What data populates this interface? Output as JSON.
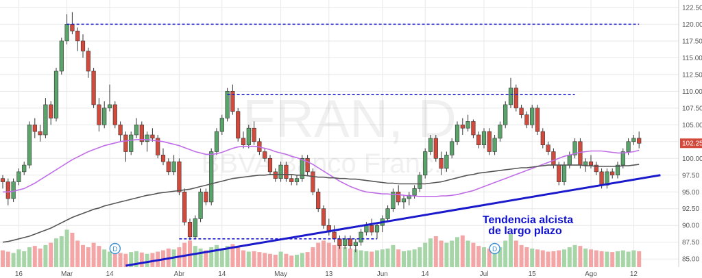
{
  "chart_data": {
    "type": "candlestick",
    "watermark": {
      "symbol": "FRAN, D",
      "name": "BBVA Banco Franc..."
    },
    "ylim": [
      84,
      123
    ],
    "y_ticks": [
      85.0,
      87.5,
      90.0,
      92.5,
      95.0,
      97.5,
      100.0,
      102.5,
      105.0,
      107.5,
      110.0,
      112.5,
      115.0,
      117.5,
      120.0,
      122.5
    ],
    "y_tick_labels": [
      "85.00",
      "87.50",
      "90.00",
      "92.50",
      "95.00",
      "97.50",
      "100.00",
      "102.50",
      "105.00",
      "107.50",
      "110.00",
      "112.50",
      "115.00",
      "117.50",
      "120.00",
      "122.50"
    ],
    "x_ticks": [
      {
        "label": "16",
        "index": 3
      },
      {
        "label": "Mar",
        "index": 12
      },
      {
        "label": "14",
        "index": 20
      },
      {
        "label": "Abr",
        "index": 33
      },
      {
        "label": "14",
        "index": 41
      },
      {
        "label": "May",
        "index": 52
      },
      {
        "label": "13",
        "index": 61
      },
      {
        "label": "Jun",
        "index": 71
      },
      {
        "label": "14",
        "index": 79
      },
      {
        "label": "Jul",
        "index": 90
      },
      {
        "label": "15",
        "index": 99
      },
      {
        "label": "Ago",
        "index": 110
      },
      {
        "label": "12",
        "index": 118
      }
    ],
    "last_price": {
      "value": 102.25,
      "label": "102.25"
    },
    "ohlc": [
      [
        97.0,
        97.5,
        95.5,
        96.5
      ],
      [
        96.5,
        97.0,
        93.0,
        94.0
      ],
      [
        94.0,
        97.0,
        93.5,
        96.5
      ],
      [
        96.5,
        98.5,
        96.0,
        98.0
      ],
      [
        98.0,
        99.5,
        97.5,
        99.0
      ],
      [
        99.0,
        105.5,
        98.5,
        105.0
      ],
      [
        105.0,
        106.0,
        103.0,
        104.0
      ],
      [
        104.0,
        105.0,
        102.5,
        103.5
      ],
      [
        103.5,
        109.0,
        103.0,
        108.0
      ],
      [
        108.0,
        108.5,
        105.0,
        106.0
      ],
      [
        106.0,
        113.5,
        105.5,
        113.0
      ],
      [
        113.0,
        118.0,
        112.5,
        117.5
      ],
      [
        117.5,
        121.5,
        117.0,
        120.0
      ],
      [
        120.0,
        121.8,
        118.5,
        119.0
      ],
      [
        119.0,
        119.5,
        116.0,
        117.5
      ],
      [
        117.5,
        118.5,
        115.0,
        116.0
      ],
      [
        116.0,
        116.5,
        112.0,
        113.0
      ],
      [
        113.0,
        113.5,
        107.5,
        108.0
      ],
      [
        108.0,
        109.0,
        104.0,
        105.0
      ],
      [
        105.0,
        108.5,
        104.5,
        107.5
      ],
      [
        107.5,
        111.0,
        107.0,
        108.0
      ],
      [
        108.0,
        108.5,
        104.5,
        105.0
      ],
      [
        105.0,
        105.5,
        102.5,
        103.5
      ],
      [
        103.5,
        104.0,
        99.5,
        101.0
      ],
      [
        101.0,
        104.0,
        100.5,
        103.5
      ],
      [
        103.5,
        106.0,
        103.0,
        105.0
      ],
      [
        105.0,
        105.5,
        102.0,
        102.5
      ],
      [
        102.5,
        104.0,
        101.0,
        103.5
      ],
      [
        103.5,
        104.5,
        102.5,
        103.0
      ],
      [
        103.0,
        103.5,
        100.0,
        100.5
      ],
      [
        100.5,
        101.5,
        99.0,
        99.5
      ],
      [
        99.5,
        100.0,
        97.5,
        98.0
      ],
      [
        98.0,
        100.5,
        97.5,
        99.5
      ],
      [
        99.5,
        100.0,
        94.5,
        95.0
      ],
      [
        95.0,
        95.5,
        90.0,
        90.5
      ],
      [
        90.5,
        91.0,
        87.8,
        88.3
      ],
      [
        88.3,
        91.5,
        88.0,
        91.0
      ],
      [
        91.0,
        95.5,
        90.5,
        95.0
      ],
      [
        95.0,
        95.5,
        93.0,
        93.5
      ],
      [
        93.5,
        101.5,
        93.0,
        101.0
      ],
      [
        101.0,
        104.5,
        100.5,
        104.0
      ],
      [
        104.0,
        106.5,
        103.5,
        106.0
      ],
      [
        106.0,
        110.5,
        105.5,
        110.0
      ],
      [
        110.0,
        111.0,
        106.5,
        107.0
      ],
      [
        107.0,
        107.5,
        102.5,
        103.0
      ],
      [
        103.0,
        104.0,
        101.5,
        102.0
      ],
      [
        102.0,
        105.0,
        101.5,
        104.5
      ],
      [
        104.5,
        105.5,
        102.0,
        102.5
      ],
      [
        102.5,
        103.0,
        100.5,
        101.0
      ],
      [
        101.0,
        101.5,
        99.5,
        100.0
      ],
      [
        100.0,
        100.5,
        97.5,
        98.0
      ],
      [
        98.0,
        98.5,
        96.5,
        97.0
      ],
      [
        97.0,
        99.5,
        96.5,
        99.0
      ],
      [
        99.0,
        99.5,
        96.5,
        97.0
      ],
      [
        97.0,
        97.5,
        96.0,
        96.5
      ],
      [
        96.5,
        97.5,
        96.0,
        97.0
      ],
      [
        97.0,
        100.5,
        96.5,
        100.0
      ],
      [
        100.0,
        100.5,
        97.5,
        98.0
      ],
      [
        98.0,
        98.5,
        94.5,
        95.0
      ],
      [
        95.0,
        95.5,
        92.0,
        92.5
      ],
      [
        92.5,
        93.0,
        89.5,
        90.0
      ],
      [
        90.0,
        91.0,
        88.5,
        89.0
      ],
      [
        89.0,
        90.0,
        87.5,
        88.0
      ],
      [
        88.0,
        88.5,
        86.5,
        87.0
      ],
      [
        87.0,
        88.5,
        86.5,
        88.0
      ],
      [
        88.0,
        88.5,
        86.5,
        87.0
      ],
      [
        87.0,
        88.0,
        86.0,
        87.5
      ],
      [
        87.5,
        89.5,
        87.0,
        89.0
      ],
      [
        89.0,
        90.5,
        88.5,
        90.0
      ],
      [
        90.0,
        91.0,
        88.5,
        89.0
      ],
      [
        89.0,
        90.5,
        88.0,
        90.0
      ],
      [
        90.0,
        91.5,
        89.0,
        91.0
      ],
      [
        91.0,
        93.0,
        90.5,
        92.5
      ],
      [
        92.5,
        95.5,
        92.0,
        95.0
      ],
      [
        95.0,
        96.0,
        93.0,
        93.5
      ],
      [
        93.5,
        94.5,
        92.5,
        94.0
      ],
      [
        94.0,
        95.0,
        93.0,
        94.5
      ],
      [
        94.5,
        96.0,
        94.0,
        95.5
      ],
      [
        95.5,
        98.0,
        95.0,
        97.5
      ],
      [
        97.5,
        101.5,
        97.0,
        101.0
      ],
      [
        101.0,
        103.5,
        100.5,
        103.0
      ],
      [
        103.0,
        103.5,
        99.5,
        100.0
      ],
      [
        100.0,
        101.0,
        97.5,
        98.5
      ],
      [
        98.5,
        101.0,
        98.0,
        100.5
      ],
      [
        100.5,
        103.0,
        100.0,
        102.5
      ],
      [
        102.5,
        105.5,
        102.0,
        105.0
      ],
      [
        105.0,
        106.0,
        103.5,
        104.5
      ],
      [
        104.5,
        106.5,
        104.0,
        105.5
      ],
      [
        105.5,
        105.8,
        103.0,
        103.5
      ],
      [
        103.5,
        104.0,
        101.5,
        102.0
      ],
      [
        102.0,
        104.5,
        101.5,
        104.0
      ],
      [
        104.0,
        104.5,
        100.5,
        101.0
      ],
      [
        101.0,
        103.5,
        100.5,
        103.0
      ],
      [
        103.0,
        105.5,
        102.5,
        105.0
      ],
      [
        105.0,
        108.5,
        104.5,
        108.0
      ],
      [
        108.0,
        112.0,
        107.5,
        110.5
      ],
      [
        110.5,
        111.0,
        107.0,
        107.5
      ],
      [
        107.5,
        108.0,
        106.0,
        106.5
      ],
      [
        106.5,
        107.0,
        104.5,
        105.0
      ],
      [
        105.0,
        108.0,
        104.5,
        107.5
      ],
      [
        107.5,
        108.0,
        103.5,
        104.0
      ],
      [
        104.0,
        104.5,
        101.5,
        102.0
      ],
      [
        102.0,
        102.5,
        100.5,
        101.0
      ],
      [
        101.0,
        101.5,
        98.5,
        99.0
      ],
      [
        99.0,
        99.5,
        96.0,
        96.5
      ],
      [
        96.5,
        99.5,
        96.0,
        99.0
      ],
      [
        99.0,
        101.0,
        98.5,
        100.5
      ],
      [
        100.5,
        103.0,
        100.0,
        102.5
      ],
      [
        102.5,
        103.0,
        98.5,
        99.0
      ],
      [
        99.0,
        100.0,
        98.0,
        99.5
      ],
      [
        99.5,
        100.5,
        98.5,
        99.0
      ],
      [
        99.0,
        99.5,
        97.5,
        98.0
      ],
      [
        98.0,
        98.5,
        95.5,
        96.0
      ],
      [
        96.0,
        98.5,
        95.5,
        98.0
      ],
      [
        98.0,
        98.5,
        97.0,
        97.5
      ],
      [
        97.5,
        99.5,
        97.0,
        99.0
      ],
      [
        99.0,
        101.5,
        98.5,
        101.0
      ],
      [
        101.0,
        103.0,
        100.5,
        102.5
      ],
      [
        102.5,
        103.5,
        102.0,
        103.0
      ],
      [
        103.0,
        104.0,
        101.5,
        102.25
      ]
    ],
    "volume": [
      3.8,
      3.5,
      3.2,
      4.0,
      3.6,
      4.5,
      4.8,
      4.2,
      5.0,
      5.5,
      6.5,
      7.0,
      8.5,
      7.8,
      6.0,
      5.0,
      4.5,
      5.5,
      4.8,
      4.0,
      3.5,
      3.8,
      3.2,
      3.0,
      3.4,
      3.6,
      3.3,
      3.0,
      3.2,
      3.5,
      3.8,
      4.2,
      4.0,
      4.5,
      5.5,
      6.0,
      4.8,
      4.2,
      3.8,
      4.5,
      5.0,
      4.0,
      4.8,
      5.2,
      4.5,
      3.8,
      3.5,
      3.6,
      3.4,
      3.2,
      3.0,
      2.8,
      3.5,
      3.0,
      2.6,
      2.8,
      3.2,
      3.4,
      4.5,
      5.5,
      6.0,
      5.5,
      5.0,
      4.8,
      4.5,
      4.2,
      4.0,
      3.8,
      3.6,
      3.5,
      3.8,
      4.0,
      4.2,
      5.0,
      4.0,
      3.6,
      3.8,
      4.0,
      4.5,
      5.5,
      6.5,
      7.0,
      6.0,
      5.5,
      6.0,
      6.8,
      7.2,
      6.0,
      5.5,
      4.8,
      4.5,
      4.2,
      4.0,
      4.5,
      6.0,
      7.5,
      6.0,
      5.0,
      4.5,
      4.2,
      4.0,
      3.8,
      3.5,
      3.6,
      3.8,
      4.0,
      4.5,
      5.0,
      4.8,
      4.2,
      4.0,
      3.8,
      3.6,
      3.5,
      3.4,
      3.6,
      3.8,
      3.5,
      3.8,
      3.6
    ],
    "volume_max": 14,
    "lines": {
      "ma_short": {
        "color": "#c06ee8",
        "values": [
          95.0,
          95.0,
          95.1,
          95.3,
          95.5,
          95.9,
          96.3,
          96.8,
          97.3,
          97.8,
          98.3,
          98.8,
          99.3,
          99.8,
          100.2,
          100.6,
          101.0,
          101.3,
          101.6,
          101.9,
          102.1,
          102.3,
          102.5,
          102.6,
          102.7,
          102.8,
          102.8,
          102.8,
          102.7,
          102.6,
          102.5,
          102.3,
          102.1,
          101.9,
          101.6,
          101.3,
          101.0,
          100.8,
          100.6,
          100.6,
          100.7,
          100.9,
          101.2,
          101.5,
          101.7,
          101.8,
          101.8,
          101.8,
          101.7,
          101.5,
          101.3,
          101.0,
          100.8,
          100.6,
          100.3,
          100.1,
          99.8,
          99.5,
          99.1,
          98.6,
          98.1,
          97.6,
          97.1,
          96.6,
          96.2,
          95.8,
          95.5,
          95.2,
          95.0,
          94.9,
          94.8,
          94.7,
          94.7,
          94.6,
          94.6,
          94.5,
          94.4,
          94.4,
          94.3,
          94.3,
          94.3,
          94.3,
          94.4,
          94.4,
          94.5,
          94.6,
          94.8,
          95.0,
          95.2,
          95.5,
          95.8,
          96.1,
          96.4,
          96.7,
          97.0,
          97.3,
          97.6,
          97.9,
          98.2,
          98.5,
          98.8,
          99.1,
          99.4,
          99.7,
          100.0,
          100.3,
          100.5,
          100.7,
          100.9,
          101.0,
          101.1,
          101.1,
          101.1,
          101.0,
          100.9,
          100.8,
          100.8,
          100.9,
          101.0,
          101.2
        ]
      },
      "ma_long": {
        "color": "#555555",
        "values": [
          87.5,
          87.6,
          87.8,
          88.0,
          88.2,
          88.4,
          88.7,
          89.0,
          89.3,
          89.6,
          90.0,
          90.4,
          90.8,
          91.2,
          91.5,
          91.8,
          92.1,
          92.4,
          92.6,
          92.9,
          93.1,
          93.3,
          93.5,
          93.7,
          93.9,
          94.1,
          94.3,
          94.5,
          94.6,
          94.8,
          94.9,
          95.0,
          95.1,
          95.2,
          95.3,
          95.4,
          95.6,
          95.8,
          96.0,
          96.2,
          96.4,
          96.6,
          96.8,
          97.0,
          97.1,
          97.2,
          97.3,
          97.4,
          97.5,
          97.5,
          97.6,
          97.6,
          97.6,
          97.6,
          97.6,
          97.5,
          97.5,
          97.4,
          97.3,
          97.2,
          97.2,
          97.1,
          97.1,
          97.0,
          97.0,
          96.9,
          96.9,
          96.8,
          96.7,
          96.6,
          96.5,
          96.4,
          96.3,
          96.3,
          96.2,
          96.2,
          96.2,
          96.2,
          96.2,
          96.2,
          96.3,
          96.4,
          96.5,
          96.7,
          96.9,
          97.1,
          97.3,
          97.5,
          97.6,
          97.8,
          97.9,
          98.0,
          98.1,
          98.2,
          98.3,
          98.4,
          98.5,
          98.6,
          98.6,
          98.7,
          98.8,
          98.9,
          99.0,
          99.0,
          99.0,
          99.0,
          99.0,
          99.0,
          99.0,
          98.9,
          98.9,
          98.8,
          98.8,
          98.8,
          98.8,
          98.8,
          98.9,
          98.9,
          99.0,
          99.1
        ]
      }
    },
    "levels": [
      {
        "y": 120.0,
        "from": 12,
        "to": 119,
        "color": "#1a1acc"
      },
      {
        "y": 109.5,
        "from": 42,
        "to": 107,
        "color": "#1a1acc"
      },
      {
        "y": 88.0,
        "from": 33,
        "to": 70,
        "color": "#1a1acc"
      }
    ],
    "trendline": {
      "from": [
        23,
        84.0
      ],
      "to": [
        123,
        97.5
      ],
      "color": "#1a1acc"
    },
    "annotation": {
      "lines": [
        "Tendencia alcista",
        "de largo plazo"
      ],
      "color": "#1010d0"
    },
    "dividend_markers": [
      {
        "index": 21,
        "label": "D"
      },
      {
        "index": 92,
        "label": "D"
      }
    ],
    "colors": {
      "up": "#5aa36a",
      "down": "#d24a3c",
      "up_volume": "#a6d5a8",
      "down_volume": "#f4a6a6",
      "grid": "#e8e8e8",
      "last_price_bg": "#d24a3c"
    }
  }
}
